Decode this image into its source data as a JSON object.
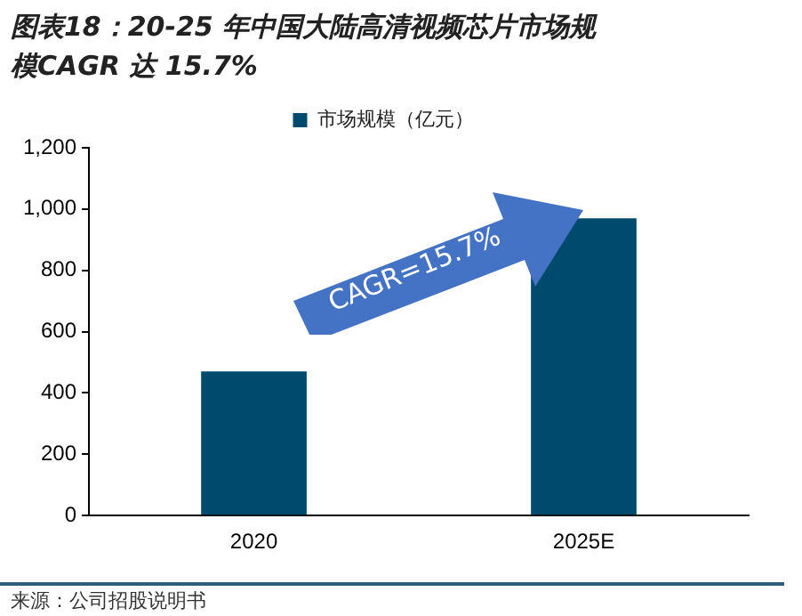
{
  "chart_data": {
    "type": "bar",
    "title": "图表18：20-25 年中国大陆高清视频芯片市场规模CAGR 达 15.7%",
    "categories": [
      "2020",
      "2025E"
    ],
    "series": [
      {
        "name": "市场规模（亿元）",
        "color": "#004a6e",
        "values": [
          470,
          970
        ]
      }
    ],
    "ylim": [
      0,
      1200
    ],
    "yticks": [
      {
        "value": 0,
        "label": "0"
      },
      {
        "value": 200,
        "label": "200"
      },
      {
        "value": 400,
        "label": "400"
      },
      {
        "value": 600,
        "label": "600"
      },
      {
        "value": 800,
        "label": "800"
      },
      {
        "value": 1000,
        "label": "1,000"
      },
      {
        "value": 1200,
        "label": "1,200"
      }
    ],
    "grid": false,
    "legend": "top",
    "annotations": [
      "CAGR=15.7%",
      "来源：公司招股说明书"
    ]
  }
}
